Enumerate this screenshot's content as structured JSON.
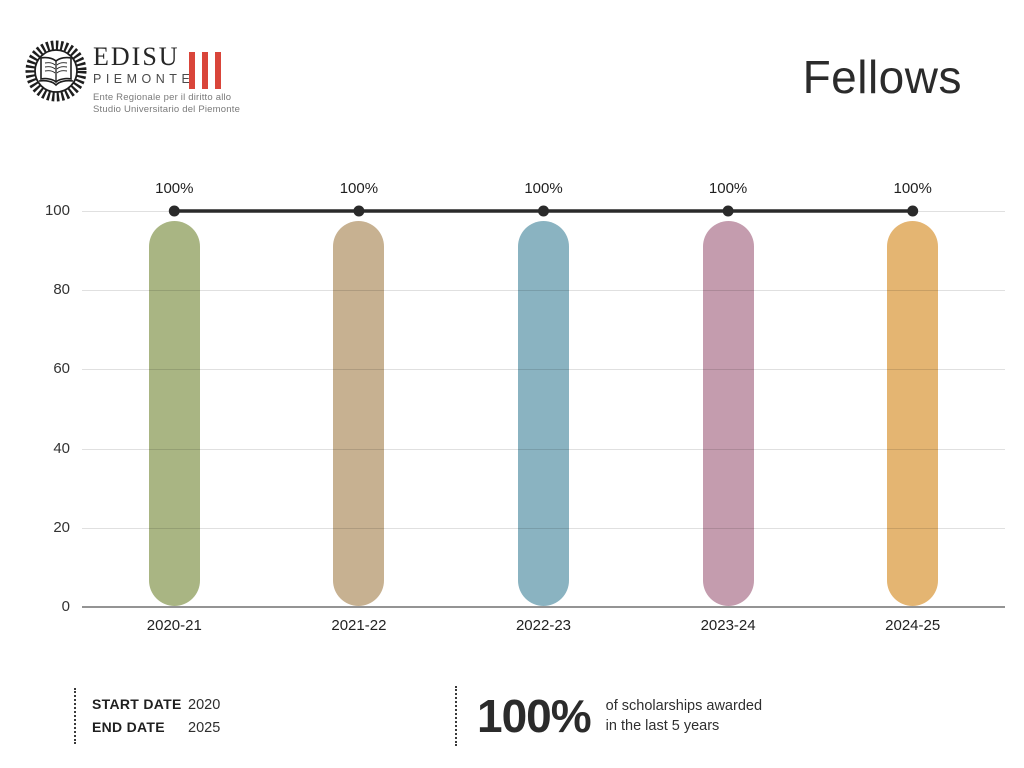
{
  "logo": {
    "name": "EDISU",
    "subname": "PIEMONTE",
    "tagline_line1": "Ente Regionale per il diritto allo",
    "tagline_line2": "Studio Universitario del Piemonte",
    "accent_color": "#d9453a"
  },
  "header": {
    "title": "Fellows"
  },
  "chart_data": {
    "type": "bar",
    "title": "Fellows",
    "categories": [
      "2020-21",
      "2021-22",
      "2022-23",
      "2023-24",
      "2024-25"
    ],
    "values": [
      100,
      100,
      100,
      100,
      100
    ],
    "value_labels": [
      "100%",
      "100%",
      "100%",
      "100%",
      "100%"
    ],
    "bar_colors": [
      "#a9b583",
      "#c7b191",
      "#8ab3c1",
      "#c49cae",
      "#e4b572"
    ],
    "line_overlay": {
      "values": [
        100,
        100,
        100,
        100,
        100
      ],
      "color": "#2a2a2a"
    },
    "yticks": [
      0,
      20,
      40,
      60,
      80,
      100
    ],
    "ylim": [
      0,
      100
    ],
    "grid": true,
    "legend": "none",
    "xlabel": "",
    "ylabel": ""
  },
  "footer": {
    "start_date_label": "START DATE",
    "start_date_value": "2020",
    "end_date_label": "END DATE",
    "end_date_value": "2025",
    "highlight_value": "100%",
    "highlight_text_line1": "of scholarships awarded",
    "highlight_text_line2": "in the last 5 years"
  }
}
